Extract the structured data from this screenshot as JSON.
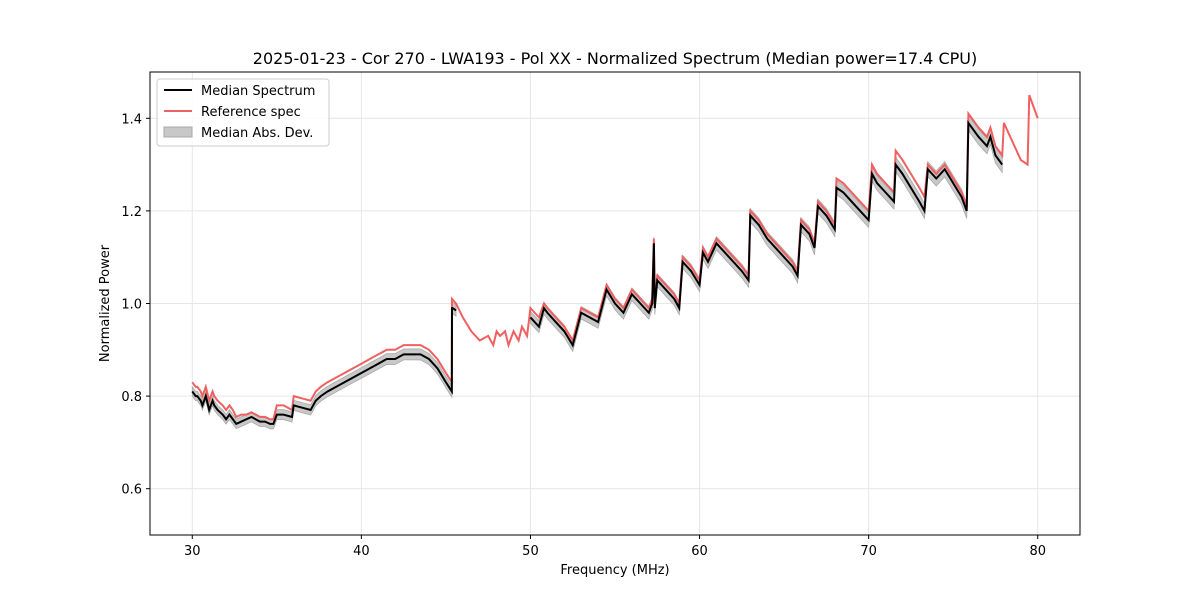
{
  "chart_data": {
    "type": "line",
    "title": "2025-01-23 - Cor 270 - LWA193 - Pol XX - Normalized Spectrum (Median power=17.4 CPU)",
    "xlabel": "Frequency (MHz)",
    "ylabel": "Normalized Power",
    "xlim": [
      27.5,
      82.5
    ],
    "ylim": [
      0.5,
      1.5
    ],
    "xticks": [
      30,
      40,
      50,
      60,
      70,
      80
    ],
    "yticks": [
      0.6,
      0.8,
      1.0,
      1.2,
      1.4
    ],
    "grid": true,
    "legend_position": "top-left",
    "colors": {
      "median": "#000000",
      "reference": "#f06060",
      "mad_fill": "#c8c8c8",
      "mad_edge": "#a8a8a8"
    },
    "series": [
      {
        "name": "Median Spectrum",
        "x": [
          30.0,
          30.2,
          30.3,
          30.5,
          30.6,
          30.8,
          31.0,
          31.2,
          31.3,
          31.5,
          31.8,
          32.0,
          32.2,
          32.4,
          32.6,
          32.9,
          33.2,
          33.5,
          34.0,
          34.3,
          34.6,
          34.8,
          35.0,
          35.4,
          35.9,
          36.0,
          36.5,
          37.0,
          37.3,
          37.6,
          38.0,
          38.5,
          39.0,
          39.5,
          40.0,
          40.5,
          41.0,
          41.5,
          42.0,
          42.5,
          43.0,
          43.5,
          44.0,
          44.5,
          45.0,
          45.35,
          45.36,
          45.4,
          45.6
        ],
        "y": [
          0.81,
          0.8,
          0.8,
          0.79,
          0.78,
          0.8,
          0.77,
          0.79,
          0.78,
          0.77,
          0.76,
          0.75,
          0.76,
          0.75,
          0.74,
          0.745,
          0.75,
          0.755,
          0.745,
          0.745,
          0.74,
          0.74,
          0.76,
          0.76,
          0.755,
          0.78,
          0.775,
          0.77,
          0.79,
          0.8,
          0.81,
          0.82,
          0.83,
          0.84,
          0.85,
          0.86,
          0.87,
          0.88,
          0.88,
          0.89,
          0.89,
          0.89,
          0.88,
          0.86,
          0.83,
          0.81,
          0.99,
          0.99,
          0.985
        ]
      },
      {
        "name": "Median Spectrum",
        "x": [
          50.0,
          50.5,
          50.8,
          51.0,
          51.5,
          52.0,
          52.5,
          53.0,
          53.5,
          54.0,
          54.5,
          55.0,
          55.5,
          56.0,
          56.5,
          57.0,
          57.2,
          57.3,
          57.35,
          57.5,
          58.0,
          58.5,
          58.8,
          59.0,
          59.5,
          60.0,
          60.2,
          60.5,
          61.0,
          61.5,
          62.0,
          62.5,
          62.9,
          63.0,
          63.5,
          64.0,
          64.5,
          65.0,
          65.5,
          65.8,
          66.0,
          66.5,
          66.8,
          67.0,
          67.5,
          68.0,
          68.1,
          68.5,
          69.0,
          69.5,
          70.0,
          70.2,
          70.5,
          71.0,
          71.5,
          71.6,
          72.0,
          72.5,
          73.0,
          73.3,
          73.5,
          74.0,
          74.5,
          75.0,
          75.5,
          75.8,
          75.9,
          76.5,
          77.0,
          77.2,
          77.5,
          77.9
        ],
        "y": [
          0.97,
          0.95,
          0.99,
          0.98,
          0.96,
          0.94,
          0.91,
          0.98,
          0.97,
          0.96,
          1.03,
          1.0,
          0.98,
          1.02,
          1.0,
          0.98,
          1.0,
          1.13,
          0.99,
          1.05,
          1.03,
          1.01,
          0.99,
          1.09,
          1.07,
          1.04,
          1.11,
          1.09,
          1.13,
          1.11,
          1.09,
          1.07,
          1.05,
          1.19,
          1.17,
          1.14,
          1.12,
          1.1,
          1.08,
          1.06,
          1.17,
          1.15,
          1.12,
          1.21,
          1.19,
          1.16,
          1.25,
          1.24,
          1.22,
          1.2,
          1.18,
          1.28,
          1.26,
          1.24,
          1.22,
          1.3,
          1.28,
          1.25,
          1.22,
          1.2,
          1.29,
          1.27,
          1.29,
          1.26,
          1.23,
          1.2,
          1.39,
          1.36,
          1.34,
          1.36,
          1.32,
          1.3
        ]
      },
      {
        "name": "Reference spec",
        "x": [
          30.0,
          30.2,
          30.3,
          30.5,
          30.6,
          30.8,
          31.0,
          31.2,
          31.3,
          31.5,
          31.8,
          32.0,
          32.2,
          32.4,
          32.6,
          32.9,
          33.2,
          33.5,
          34.0,
          34.3,
          34.6,
          34.8,
          35.0,
          35.4,
          35.9,
          36.0,
          36.5,
          37.0,
          37.3,
          37.6,
          38.0,
          38.5,
          39.0,
          39.5,
          40.0,
          40.5,
          41.0,
          41.5,
          42.0,
          42.5,
          43.0,
          43.5,
          44.0,
          44.5,
          45.0,
          45.35,
          45.36,
          45.6,
          46.0,
          46.5,
          47.0,
          47.5,
          47.8,
          48.0,
          48.2,
          48.5,
          48.7,
          49.0,
          49.3,
          49.5,
          49.8,
          50.0,
          50.5,
          50.8,
          51.0,
          51.5,
          52.0,
          52.5,
          53.0,
          53.5,
          54.0,
          54.5,
          55.0,
          55.5,
          56.0,
          56.5,
          57.0,
          57.2,
          57.3,
          57.35,
          57.5,
          58.0,
          58.5,
          58.8,
          59.0,
          59.5,
          60.0,
          60.2,
          60.5,
          61.0,
          61.5,
          62.0,
          62.5,
          62.9,
          63.0,
          63.5,
          64.0,
          64.5,
          65.0,
          65.5,
          65.8,
          66.0,
          66.5,
          66.8,
          67.0,
          67.5,
          68.0,
          68.1,
          68.5,
          69.0,
          69.5,
          70.0,
          70.2,
          70.5,
          71.0,
          71.5,
          71.6,
          72.0,
          72.5,
          73.0,
          73.3,
          73.5,
          74.0,
          74.5,
          75.0,
          75.5,
          75.8,
          75.9,
          76.5,
          77.0,
          77.2,
          77.5,
          77.9,
          78.0,
          78.5,
          79.0,
          79.4,
          79.5,
          80.0
        ],
        "y": [
          0.83,
          0.82,
          0.82,
          0.81,
          0.8,
          0.82,
          0.79,
          0.81,
          0.8,
          0.79,
          0.78,
          0.77,
          0.78,
          0.77,
          0.755,
          0.76,
          0.76,
          0.765,
          0.755,
          0.755,
          0.75,
          0.75,
          0.78,
          0.78,
          0.77,
          0.8,
          0.795,
          0.79,
          0.81,
          0.82,
          0.83,
          0.84,
          0.85,
          0.86,
          0.87,
          0.88,
          0.89,
          0.9,
          0.9,
          0.91,
          0.91,
          0.91,
          0.9,
          0.88,
          0.85,
          0.83,
          1.01,
          1.0,
          0.97,
          0.94,
          0.92,
          0.93,
          0.91,
          0.94,
          0.93,
          0.94,
          0.91,
          0.94,
          0.92,
          0.95,
          0.93,
          0.99,
          0.97,
          1.0,
          0.99,
          0.97,
          0.95,
          0.92,
          0.99,
          0.98,
          0.97,
          1.04,
          1.01,
          0.99,
          1.03,
          1.01,
          0.99,
          1.01,
          1.14,
          1.0,
          1.06,
          1.04,
          1.02,
          1.0,
          1.1,
          1.08,
          1.05,
          1.12,
          1.1,
          1.14,
          1.12,
          1.1,
          1.08,
          1.06,
          1.2,
          1.18,
          1.15,
          1.13,
          1.11,
          1.09,
          1.07,
          1.18,
          1.16,
          1.13,
          1.22,
          1.2,
          1.17,
          1.27,
          1.26,
          1.24,
          1.22,
          1.2,
          1.3,
          1.28,
          1.26,
          1.24,
          1.33,
          1.31,
          1.28,
          1.25,
          1.23,
          1.3,
          1.28,
          1.3,
          1.27,
          1.24,
          1.21,
          1.41,
          1.38,
          1.36,
          1.38,
          1.34,
          1.32,
          1.39,
          1.35,
          1.31,
          1.3,
          1.45,
          1.4
        ]
      }
    ],
    "legend": [
      "Median Spectrum",
      "Reference spec",
      "Median Abs. Dev."
    ]
  }
}
